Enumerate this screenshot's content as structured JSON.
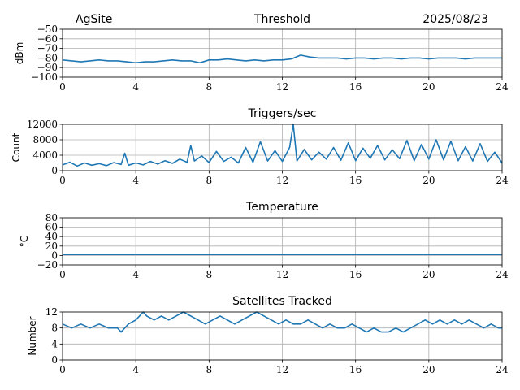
{
  "header": {
    "site": "AgSite",
    "date": "2025/08/23"
  },
  "line_color": "#1f77b4",
  "chart_data": [
    {
      "type": "line",
      "title": "Threshold",
      "xlabel": "",
      "ylabel": "dBm",
      "xlim": [
        0,
        24
      ],
      "ylim": [
        -100,
        -50
      ],
      "x_ticks": [
        0,
        4,
        8,
        12,
        16,
        20,
        24
      ],
      "y_ticks": [
        -100,
        -90,
        -80,
        -70,
        -60,
        -50
      ],
      "y_tick_labels": [
        "−100",
        "−90",
        "−80",
        "−70",
        "−60",
        "−50"
      ],
      "grid": true,
      "series": [
        {
          "x": [
            0,
            0.5,
            1,
            1.5,
            2,
            2.5,
            3,
            3.5,
            4,
            4.5,
            5,
            5.5,
            6,
            6.5,
            7,
            7.5,
            8,
            8.5,
            9,
            9.5,
            10,
            10.5,
            11,
            11.5,
            12,
            12.5,
            13,
            13.5,
            14,
            14.5,
            15,
            15.5,
            16,
            16.5,
            17,
            17.5,
            18,
            18.5,
            19,
            19.5,
            20,
            20.5,
            21,
            21.5,
            22,
            22.5,
            23,
            23.5,
            24
          ],
          "y": [
            -82,
            -83,
            -84,
            -83,
            -82,
            -83,
            -83,
            -84,
            -85,
            -84,
            -84,
            -83,
            -82,
            -83,
            -83,
            -85,
            -82,
            -82,
            -81,
            -82,
            -83,
            -82,
            -83,
            -82,
            -82,
            -81,
            -77,
            -79,
            -80,
            -80,
            -80,
            -81,
            -80,
            -80,
            -81,
            -80,
            -80,
            -81,
            -80,
            -80,
            -81,
            -80,
            -80,
            -80,
            -81,
            -80,
            -80,
            -80,
            -80
          ]
        }
      ]
    },
    {
      "type": "line",
      "title": "Triggers/sec",
      "xlabel": "",
      "ylabel": "Count",
      "xlim": [
        0,
        24
      ],
      "ylim": [
        0,
        12000
      ],
      "x_ticks": [
        0,
        4,
        8,
        12,
        16,
        20,
        24
      ],
      "y_ticks": [
        0,
        4000,
        8000,
        12000
      ],
      "y_tick_labels": [
        "0",
        "4000",
        "8000",
        "12000"
      ],
      "grid": true,
      "series": [
        {
          "x": [
            0,
            0.4,
            0.8,
            1.2,
            1.6,
            2,
            2.4,
            2.8,
            3.2,
            3.4,
            3.6,
            4,
            4.4,
            4.8,
            5.2,
            5.6,
            6,
            6.4,
            6.8,
            7,
            7.2,
            7.6,
            8,
            8.4,
            8.8,
            9.2,
            9.6,
            10,
            10.4,
            10.8,
            11.2,
            11.6,
            12,
            12.4,
            12.6,
            12.8,
            13.2,
            13.6,
            14,
            14.4,
            14.8,
            15.2,
            15.6,
            16,
            16.4,
            16.8,
            17.2,
            17.6,
            18,
            18.4,
            18.8,
            19.2,
            19.6,
            20,
            20.4,
            20.8,
            21.2,
            21.6,
            22,
            22.4,
            22.8,
            23.2,
            23.6,
            24
          ],
          "y": [
            1500,
            2200,
            1200,
            2000,
            1400,
            1800,
            1300,
            2100,
            1600,
            4500,
            1400,
            2000,
            1500,
            2400,
            1700,
            2600,
            1900,
            3000,
            2200,
            6500,
            2500,
            3800,
            2100,
            5000,
            2400,
            3500,
            2000,
            6000,
            2200,
            7500,
            2500,
            5200,
            2400,
            6000,
            12000,
            2500,
            5500,
            2800,
            4800,
            3000,
            6000,
            2700,
            7200,
            2600,
            5800,
            3200,
            6500,
            2800,
            5400,
            3100,
            7800,
            2600,
            6800,
            3000,
            8000,
            2800,
            7600,
            2600,
            6200,
            2500,
            7000,
            2400,
            4800,
            2000
          ]
        }
      ]
    },
    {
      "type": "line",
      "title": "Temperature",
      "xlabel": "",
      "ylabel": "°C",
      "xlim": [
        0,
        24
      ],
      "ylim": [
        -20,
        80
      ],
      "x_ticks": [
        0,
        4,
        8,
        12,
        16,
        20,
        24
      ],
      "y_ticks": [
        -20,
        0,
        20,
        40,
        60,
        80
      ],
      "y_tick_labels": [
        "−20",
        "0",
        "20",
        "40",
        "60",
        "80"
      ],
      "grid": true,
      "series": [
        {
          "x": [
            0,
            24
          ],
          "y": [
            2,
            2
          ]
        }
      ]
    },
    {
      "type": "line",
      "title": "Satellites Tracked",
      "xlabel": "",
      "ylabel": "Number",
      "xlim": [
        0,
        24
      ],
      "ylim": [
        0,
        12
      ],
      "x_ticks": [
        0,
        4,
        8,
        12,
        16,
        20,
        24
      ],
      "y_ticks": [
        0,
        4,
        8,
        12
      ],
      "y_tick_labels": [
        "0",
        "4",
        "8",
        "12"
      ],
      "grid": true,
      "series": [
        {
          "x": [
            0,
            0.5,
            1,
            1.5,
            2,
            2.5,
            3,
            3.2,
            3.4,
            3.6,
            4,
            4.2,
            4.4,
            4.6,
            5,
            5.4,
            5.8,
            6.2,
            6.6,
            7,
            7.4,
            7.8,
            8.2,
            8.6,
            9,
            9.4,
            9.8,
            10.2,
            10.6,
            11,
            11.4,
            11.8,
            12.2,
            12.6,
            13,
            13.4,
            13.8,
            14.2,
            14.6,
            15,
            15.4,
            15.8,
            16.2,
            16.6,
            17,
            17.4,
            17.8,
            18.2,
            18.6,
            19,
            19.4,
            19.8,
            20.2,
            20.6,
            21,
            21.4,
            21.8,
            22.2,
            22.6,
            23,
            23.4,
            23.8,
            24
          ],
          "y": [
            9,
            8,
            9,
            8,
            9,
            8,
            8,
            7,
            8,
            9,
            10,
            11,
            12,
            11,
            10,
            11,
            10,
            11,
            12,
            11,
            10,
            9,
            10,
            11,
            10,
            9,
            10,
            11,
            12,
            11,
            10,
            9,
            10,
            9,
            9,
            10,
            9,
            8,
            9,
            8,
            8,
            9,
            8,
            7,
            8,
            7,
            7,
            8,
            7,
            8,
            9,
            10,
            9,
            10,
            9,
            10,
            9,
            10,
            9,
            8,
            9,
            8,
            8
          ]
        }
      ]
    }
  ]
}
